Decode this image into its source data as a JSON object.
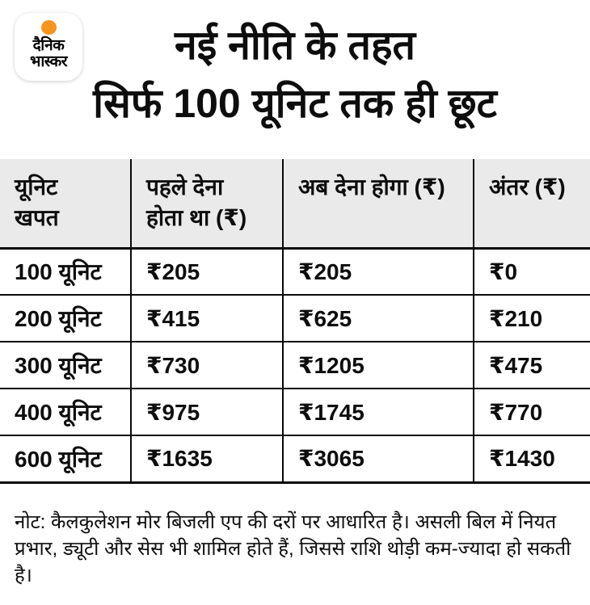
{
  "logo": {
    "line1": "दैनिक",
    "line2": "भास्कर",
    "accent_color": "#f7941e"
  },
  "title": {
    "line1": "नई नीति के तहत",
    "line2": "सिर्फ 100 यूनिट तक ही छूट"
  },
  "table": {
    "headers": [
      {
        "line1": "यूनिट",
        "line2": "खपत"
      },
      {
        "line1": "पहले देना",
        "line2": "होता था (₹)"
      },
      {
        "line1": "अब देना होगा (₹)",
        "line2": ""
      },
      {
        "line1": "अंतर (₹)",
        "line2": ""
      }
    ],
    "rows": [
      {
        "unit": "100 यूनिट",
        "before": "₹205",
        "now": "₹205",
        "diff": "₹0"
      },
      {
        "unit": "200 यूनिट",
        "before": "₹415",
        "now": "₹625",
        "diff": "₹210"
      },
      {
        "unit": "300 यूनिट",
        "before": "₹730",
        "now": "₹1205",
        "diff": "₹475"
      },
      {
        "unit": "400 यूनिट",
        "before": "₹975",
        "now": "₹1745",
        "diff": "₹770"
      },
      {
        "unit": "600 यूनिट",
        "before": "₹1635",
        "now": "₹3065",
        "diff": "₹1430"
      }
    ]
  },
  "note": "नोट: कैलकुलेशन मोर बिजली एप की दरों पर आधारित है। असली बिल में नियत प्रभार, ड्यूटी और सेस भी शामिल होते हैं, जिससे राशि थोड़ी कम-ज्यादा हो सकती है।",
  "colors": {
    "header_bg": "#eaeaea",
    "border": "#0a0a0a",
    "accent": "#f7941e"
  },
  "chart_data": {
    "type": "table",
    "title": "नई नीति के तहत सिर्फ 100 यूनिट तक ही छूट",
    "columns": [
      "यूनिट खपत",
      "पहले देना होता था (₹)",
      "अब देना होगा (₹)",
      "अंतर (₹)"
    ],
    "categories": [
      "100 यूनिट",
      "200 यूनिट",
      "300 यूनिट",
      "400 यूनिट",
      "600 यूनिट"
    ],
    "series": [
      {
        "name": "पहले देना होता था (₹)",
        "values": [
          205,
          415,
          730,
          975,
          1635
        ]
      },
      {
        "name": "अब देना होगा (₹)",
        "values": [
          205,
          625,
          1205,
          1745,
          3065
        ]
      },
      {
        "name": "अंतर (₹)",
        "values": [
          0,
          210,
          475,
          770,
          1430
        ]
      }
    ],
    "note": "नोट: कैलकुलेशन मोर बिजली एप की दरों पर आधारित है। असली बिल में नियत प्रभार, ड्यूटी और सेस भी शामिल होते हैं, जिससे राशि थोड़ी कम-ज्यादा हो सकती है।"
  }
}
